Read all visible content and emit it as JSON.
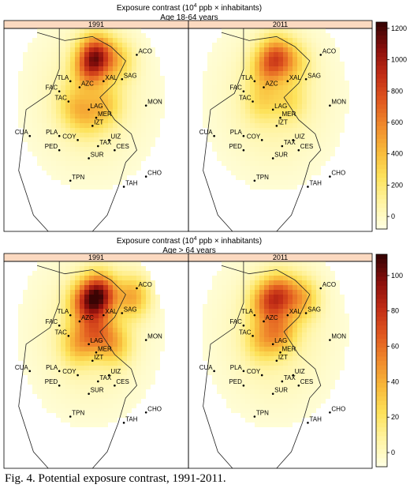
{
  "figure": {
    "caption": "Fig. 4. Potential exposure contrast, 1991-2011."
  },
  "colors": {
    "strip_bg": "#fbd9c0",
    "scale": [
      "#ffffe0",
      "#fff3a0",
      "#fde25a",
      "#f8b93a",
      "#f08a2c",
      "#e0581f",
      "#c22d16",
      "#8b0f0c",
      "#3a0404"
    ]
  },
  "chart_data": [
    {
      "type": "heatmap",
      "title": "Exposure contrast (10",
      "title_sup": "4",
      "title_tail": " ppb × inhabitants)",
      "subtitle": "Age 18-64 years",
      "panels": [
        "1991",
        "2011"
      ],
      "colorbar_ticks": [
        0,
        200,
        400,
        600,
        800,
        1000,
        1200
      ],
      "colorbar_range": [
        -80,
        1240
      ],
      "hotspots": [
        [
          {
            "x": 0.5,
            "y": 0.13,
            "v": 760
          },
          {
            "x": 0.46,
            "y": 0.2,
            "v": 420
          },
          {
            "x": 0.62,
            "y": 0.16,
            "v": 280
          },
          {
            "x": 0.38,
            "y": 0.38,
            "v": 240
          },
          {
            "x": 0.55,
            "y": 0.38,
            "v": 260
          },
          {
            "x": 0.45,
            "y": 0.44,
            "v": 200
          }
        ],
        [
          {
            "x": 0.48,
            "y": 0.14,
            "v": 560
          },
          {
            "x": 0.42,
            "y": 0.2,
            "v": 300
          },
          {
            "x": 0.58,
            "y": 0.17,
            "v": 220
          },
          {
            "x": 0.4,
            "y": 0.36,
            "v": 200
          },
          {
            "x": 0.55,
            "y": 0.36,
            "v": 180
          }
        ]
      ]
    },
    {
      "type": "heatmap",
      "title": "Exposure contrast (10",
      "title_sup": "4",
      "title_tail": " ppb × inhabitants)",
      "subtitle": "Age > 64 years",
      "panels": [
        "1991",
        "2011"
      ],
      "colorbar_ticks": [
        0,
        20,
        40,
        60,
        80,
        100
      ],
      "colorbar_range": [
        -8,
        112
      ],
      "hotspots": [
        [
          {
            "x": 0.52,
            "y": 0.16,
            "v": 80
          },
          {
            "x": 0.7,
            "y": 0.17,
            "v": 40
          },
          {
            "x": 0.44,
            "y": 0.2,
            "v": 50
          },
          {
            "x": 0.5,
            "y": 0.34,
            "v": 40
          },
          {
            "x": 0.4,
            "y": 0.4,
            "v": 30
          },
          {
            "x": 0.6,
            "y": 0.4,
            "v": 30
          }
        ],
        [
          {
            "x": 0.5,
            "y": 0.16,
            "v": 50
          },
          {
            "x": 0.62,
            "y": 0.18,
            "v": 34
          },
          {
            "x": 0.42,
            "y": 0.2,
            "v": 40
          },
          {
            "x": 0.5,
            "y": 0.34,
            "v": 34
          },
          {
            "x": 0.4,
            "y": 0.38,
            "v": 26
          }
        ]
      ]
    }
  ],
  "places": [
    {
      "code": "ACO"
    },
    {
      "code": "XAL"
    },
    {
      "code": "SAG"
    },
    {
      "code": "TLA"
    },
    {
      "code": "AZC"
    },
    {
      "code": "FAC"
    },
    {
      "code": "TAC"
    },
    {
      "code": "LAG"
    },
    {
      "code": "MON"
    },
    {
      "code": "MER"
    },
    {
      "code": "IZT"
    },
    {
      "code": "CUA"
    },
    {
      "code": "PLA"
    },
    {
      "code": "COY"
    },
    {
      "code": "UIZ"
    },
    {
      "code": "PED"
    },
    {
      "code": "TAX"
    },
    {
      "code": "CES"
    },
    {
      "code": "SUR"
    },
    {
      "code": "TPN"
    },
    {
      "code": "TAH"
    },
    {
      "code": "CHO"
    }
  ]
}
